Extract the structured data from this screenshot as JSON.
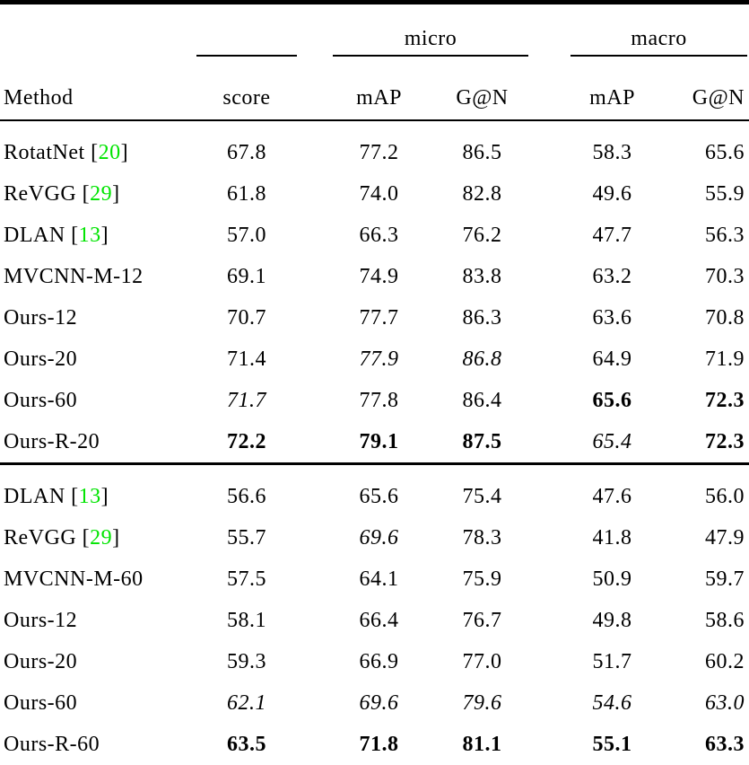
{
  "colors": {
    "citation": "#00e400",
    "text": "#000000",
    "rule": "#000000",
    "background": "#ffffff"
  },
  "table": {
    "group_headers": {
      "micro": "micro",
      "macro": "macro"
    },
    "columns": {
      "method": "Method",
      "score": "score",
      "micro_map": "mAP",
      "micro_gn": "G@N",
      "macro_map": "mAP",
      "macro_gn": "G@N"
    },
    "sections": [
      {
        "rows": [
          {
            "method": "RotatNet",
            "cite": "20",
            "values": [
              {
                "v": "67.8",
                "style": "normal"
              },
              {
                "v": "77.2",
                "style": "normal"
              },
              {
                "v": "86.5",
                "style": "normal"
              },
              {
                "v": "58.3",
                "style": "normal"
              },
              {
                "v": "65.6",
                "style": "normal"
              }
            ]
          },
          {
            "method": "ReVGG",
            "cite": "29",
            "values": [
              {
                "v": "61.8",
                "style": "normal"
              },
              {
                "v": "74.0",
                "style": "normal"
              },
              {
                "v": "82.8",
                "style": "normal"
              },
              {
                "v": "49.6",
                "style": "normal"
              },
              {
                "v": "55.9",
                "style": "normal"
              }
            ]
          },
          {
            "method": "DLAN",
            "cite": "13",
            "values": [
              {
                "v": "57.0",
                "style": "normal"
              },
              {
                "v": "66.3",
                "style": "normal"
              },
              {
                "v": "76.2",
                "style": "normal"
              },
              {
                "v": "47.7",
                "style": "normal"
              },
              {
                "v": "56.3",
                "style": "normal"
              }
            ]
          },
          {
            "method": "MVCNN-M-12",
            "cite": null,
            "values": [
              {
                "v": "69.1",
                "style": "normal"
              },
              {
                "v": "74.9",
                "style": "normal"
              },
              {
                "v": "83.8",
                "style": "normal"
              },
              {
                "v": "63.2",
                "style": "normal"
              },
              {
                "v": "70.3",
                "style": "normal"
              }
            ]
          },
          {
            "method": "Ours-12",
            "cite": null,
            "values": [
              {
                "v": "70.7",
                "style": "normal"
              },
              {
                "v": "77.7",
                "style": "normal"
              },
              {
                "v": "86.3",
                "style": "normal"
              },
              {
                "v": "63.6",
                "style": "normal"
              },
              {
                "v": "70.8",
                "style": "normal"
              }
            ]
          },
          {
            "method": "Ours-20",
            "cite": null,
            "values": [
              {
                "v": "71.4",
                "style": "normal"
              },
              {
                "v": "77.9",
                "style": "italic"
              },
              {
                "v": "86.8",
                "style": "italic"
              },
              {
                "v": "64.9",
                "style": "normal"
              },
              {
                "v": "71.9",
                "style": "normal"
              }
            ]
          },
          {
            "method": "Ours-60",
            "cite": null,
            "values": [
              {
                "v": "71.7",
                "style": "italic"
              },
              {
                "v": "77.8",
                "style": "normal"
              },
              {
                "v": "86.4",
                "style": "normal"
              },
              {
                "v": "65.6",
                "style": "bold"
              },
              {
                "v": "72.3",
                "style": "bold"
              }
            ]
          },
          {
            "method": "Ours-R-20",
            "cite": null,
            "values": [
              {
                "v": "72.2",
                "style": "bold"
              },
              {
                "v": "79.1",
                "style": "bold"
              },
              {
                "v": "87.5",
                "style": "bold"
              },
              {
                "v": "65.4",
                "style": "italic"
              },
              {
                "v": "72.3",
                "style": "bold"
              }
            ]
          }
        ]
      },
      {
        "rows": [
          {
            "method": "DLAN",
            "cite": "13",
            "values": [
              {
                "v": "56.6",
                "style": "normal"
              },
              {
                "v": "65.6",
                "style": "normal"
              },
              {
                "v": "75.4",
                "style": "normal"
              },
              {
                "v": "47.6",
                "style": "normal"
              },
              {
                "v": "56.0",
                "style": "normal"
              }
            ]
          },
          {
            "method": "ReVGG",
            "cite": "29",
            "values": [
              {
                "v": "55.7",
                "style": "normal"
              },
              {
                "v": "69.6",
                "style": "italic"
              },
              {
                "v": "78.3",
                "style": "normal"
              },
              {
                "v": "41.8",
                "style": "normal"
              },
              {
                "v": "47.9",
                "style": "normal"
              }
            ]
          },
          {
            "method": "MVCNN-M-60",
            "cite": null,
            "values": [
              {
                "v": "57.5",
                "style": "normal"
              },
              {
                "v": "64.1",
                "style": "normal"
              },
              {
                "v": "75.9",
                "style": "normal"
              },
              {
                "v": "50.9",
                "style": "normal"
              },
              {
                "v": "59.7",
                "style": "normal"
              }
            ]
          },
          {
            "method": "Ours-12",
            "cite": null,
            "values": [
              {
                "v": "58.1",
                "style": "normal"
              },
              {
                "v": "66.4",
                "style": "normal"
              },
              {
                "v": "76.7",
                "style": "normal"
              },
              {
                "v": "49.8",
                "style": "normal"
              },
              {
                "v": "58.6",
                "style": "normal"
              }
            ]
          },
          {
            "method": "Ours-20",
            "cite": null,
            "values": [
              {
                "v": "59.3",
                "style": "normal"
              },
              {
                "v": "66.9",
                "style": "normal"
              },
              {
                "v": "77.0",
                "style": "normal"
              },
              {
                "v": "51.7",
                "style": "normal"
              },
              {
                "v": "60.2",
                "style": "normal"
              }
            ]
          },
          {
            "method": "Ours-60",
            "cite": null,
            "values": [
              {
                "v": "62.1",
                "style": "italic"
              },
              {
                "v": "69.6",
                "style": "italic"
              },
              {
                "v": "79.6",
                "style": "italic"
              },
              {
                "v": "54.6",
                "style": "italic"
              },
              {
                "v": "63.0",
                "style": "italic"
              }
            ]
          },
          {
            "method": "Ours-R-60",
            "cite": null,
            "values": [
              {
                "v": "63.5",
                "style": "bold"
              },
              {
                "v": "71.8",
                "style": "bold"
              },
              {
                "v": "81.1",
                "style": "bold"
              },
              {
                "v": "55.1",
                "style": "bold"
              },
              {
                "v": "63.3",
                "style": "bold"
              }
            ]
          }
        ]
      }
    ]
  }
}
